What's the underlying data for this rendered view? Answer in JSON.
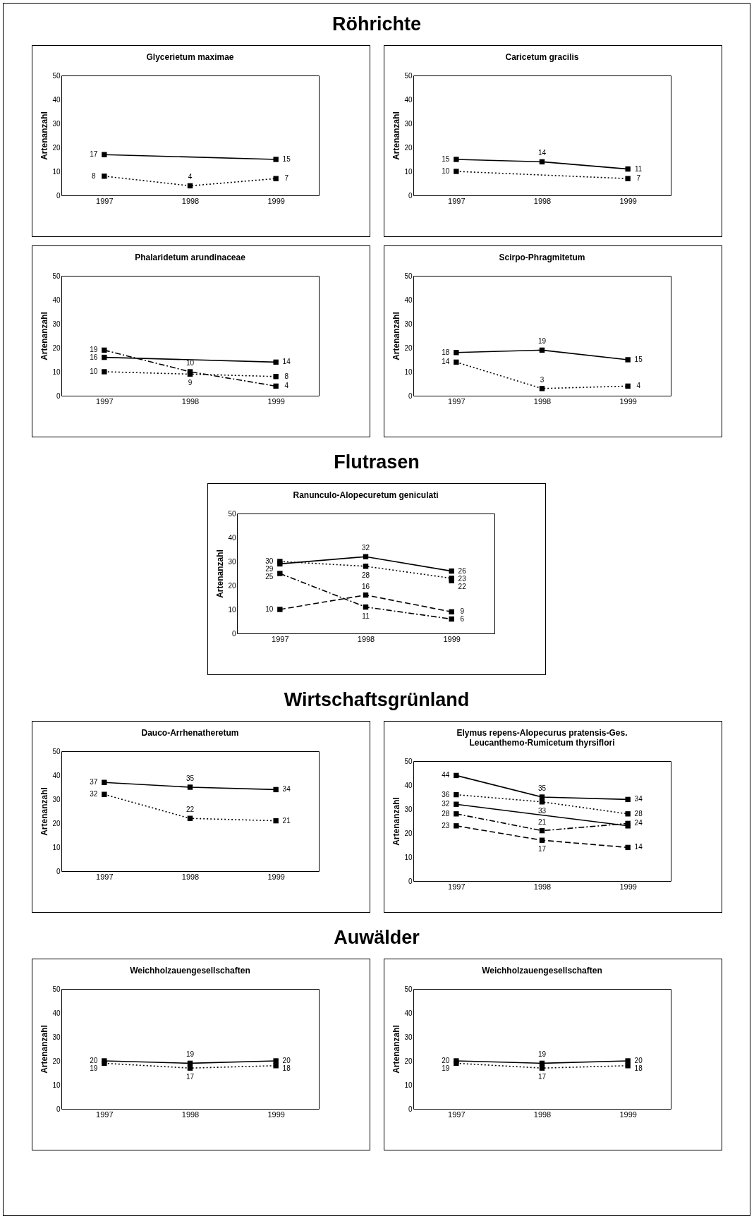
{
  "chart_data": [
    {
      "type": "line",
      "title": "Glycerietum maximae",
      "annotations": [
        "Röhrichte"
      ],
      "ylabel": "Artenanzahl",
      "categories": [
        "1997",
        "1998",
        "1999"
      ],
      "ylim": [
        0,
        50
      ],
      "yticks": [
        0,
        10,
        20,
        30,
        40,
        50
      ],
      "marker": "square",
      "series": [
        {
          "color": "#000000",
          "line_style": "solid",
          "values": [
            17,
            null,
            15
          ],
          "value_labels": [
            "17",
            null,
            "15"
          ]
        },
        {
          "color": "#000000",
          "line_style": "dotted",
          "values": [
            8,
            4,
            7
          ],
          "value_labels": [
            "8",
            "4",
            "7"
          ]
        }
      ]
    },
    {
      "type": "line",
      "title": "Caricetum gracilis",
      "ylabel": "Artenanzahl",
      "categories": [
        "1997",
        "1998",
        "1999"
      ],
      "ylim": [
        0,
        50
      ],
      "yticks": [
        0,
        10,
        20,
        30,
        40,
        50
      ],
      "marker": "square",
      "series": [
        {
          "color": "#000000",
          "line_style": "solid",
          "values": [
            15,
            14,
            11
          ],
          "value_labels": [
            "15",
            "14",
            "11"
          ]
        },
        {
          "color": "#000000",
          "line_style": "dotted",
          "values": [
            10,
            null,
            7
          ],
          "value_labels": [
            "10",
            null,
            "7"
          ]
        }
      ]
    },
    {
      "type": "line",
      "title": "Phalaridetum arundinaceae",
      "ylabel": "Artenanzahl",
      "categories": [
        "1997",
        "1998",
        "1999"
      ],
      "ylim": [
        0,
        50
      ],
      "yticks": [
        0,
        10,
        20,
        30,
        40,
        50
      ],
      "marker": "square",
      "series": [
        {
          "color": "#000000",
          "line_style": "solid",
          "values": [
            16,
            null,
            14
          ],
          "value_labels": [
            "16",
            null,
            "14"
          ]
        },
        {
          "color": "#000000",
          "line_style": "dashdot",
          "values": [
            19,
            10,
            4
          ],
          "value_labels": [
            "19",
            "10",
            "4"
          ]
        },
        {
          "color": "#000000",
          "line_style": "dotted",
          "values": [
            10,
            9,
            8
          ],
          "value_labels": [
            "10",
            "9",
            "8"
          ]
        }
      ]
    },
    {
      "type": "line",
      "title": "Scirpo-Phragmitetum",
      "ylabel": "Artenanzahl",
      "categories": [
        "1997",
        "1998",
        "1999"
      ],
      "ylim": [
        0,
        50
      ],
      "yticks": [
        0,
        10,
        20,
        30,
        40,
        50
      ],
      "marker": "square",
      "series": [
        {
          "color": "#000000",
          "line_style": "solid",
          "values": [
            18,
            19,
            15
          ],
          "value_labels": [
            "18",
            "19",
            "15"
          ]
        },
        {
          "color": "#000000",
          "line_style": "dotted",
          "values": [
            14,
            3,
            4
          ],
          "value_labels": [
            "14",
            "3",
            "4"
          ]
        }
      ]
    },
    {
      "type": "line",
      "title": "Ranunculo-Alopecuretum geniculati",
      "annotations": [
        "Flutrasen"
      ],
      "ylabel": "Artenanzahl",
      "categories": [
        "1997",
        "1998",
        "1999"
      ],
      "ylim": [
        0,
        50
      ],
      "yticks": [
        0,
        10,
        20,
        30,
        40,
        50
      ],
      "marker": "square",
      "series": [
        {
          "color": "#000000",
          "line_style": "solid",
          "values": [
            29,
            32,
            26
          ],
          "value_labels": [
            "29",
            "32",
            "26"
          ]
        },
        {
          "color": "#000000",
          "line_style": "dotted",
          "values": [
            30,
            28,
            23
          ],
          "value_labels": [
            "30",
            "28",
            "23"
          ]
        },
        {
          "color": "#000000",
          "line_style": "dotted",
          "values": [
            null,
            null,
            22
          ],
          "value_labels": [
            null,
            null,
            "22"
          ]
        },
        {
          "color": "#000000",
          "line_style": "dashdot",
          "values": [
            25,
            11,
            6
          ],
          "value_labels": [
            "25",
            "11",
            "6"
          ]
        },
        {
          "color": "#000000",
          "line_style": "dashed",
          "values": [
            10,
            16,
            9
          ],
          "value_labels": [
            "10",
            "16",
            "9"
          ]
        }
      ]
    },
    {
      "type": "line",
      "title": "Dauco-Arrhenatheretum",
      "annotations": [
        "Wirtschaftsgrünland"
      ],
      "ylabel": "Artenanzahl",
      "categories": [
        "1997",
        "1998",
        "1999"
      ],
      "ylim": [
        0,
        50
      ],
      "yticks": [
        0,
        10,
        20,
        30,
        40,
        50
      ],
      "marker": "square",
      "series": [
        {
          "color": "#000000",
          "line_style": "solid",
          "values": [
            37,
            35,
            34
          ],
          "value_labels": [
            "37",
            "35",
            "34"
          ]
        },
        {
          "color": "#000000",
          "line_style": "dotted",
          "values": [
            32,
            22,
            21
          ],
          "value_labels": [
            "32",
            "22",
            "21"
          ]
        }
      ]
    },
    {
      "type": "line",
      "title": "Elymus repens-Alopecurus pratensis-Ges.\nLeucanthemo-Rumicetum thyrsiflori",
      "ylabel": "Artenanzahl",
      "categories": [
        "1997",
        "1998",
        "1999"
      ],
      "ylim": [
        0,
        50
      ],
      "yticks": [
        0,
        10,
        20,
        30,
        40,
        50
      ],
      "marker": "square",
      "series": [
        {
          "color": "#000000",
          "line_style": "solid",
          "values": [
            44,
            35,
            34
          ],
          "value_labels": [
            "44",
            "35",
            "34"
          ]
        },
        {
          "color": "#000000",
          "line_style": "dotted",
          "values": [
            36,
            33,
            28
          ],
          "value_labels": [
            "36",
            "33",
            "28"
          ]
        },
        {
          "color": "#000000",
          "line_style": "solid",
          "values": [
            32,
            null,
            23
          ],
          "value_labels": [
            "32",
            null,
            null
          ]
        },
        {
          "color": "#000000",
          "line_style": "dashdot",
          "values": [
            28,
            21,
            24
          ],
          "value_labels": [
            "28",
            "21",
            "24"
          ]
        },
        {
          "color": "#000000",
          "line_style": "dashed",
          "values": [
            23,
            17,
            14
          ],
          "value_labels": [
            "23",
            "17",
            "14"
          ]
        }
      ]
    },
    {
      "type": "line",
      "title": "Weichholzauengesellschaften",
      "annotations": [
        "Auwälder"
      ],
      "ylabel": "Artenanzahl",
      "categories": [
        "1997",
        "1998",
        "1999"
      ],
      "ylim": [
        0,
        50
      ],
      "yticks": [
        0,
        10,
        20,
        30,
        40,
        50
      ],
      "marker": "square",
      "series": [
        {
          "color": "#000000",
          "line_style": "solid",
          "values": [
            20,
            19,
            20
          ],
          "value_labels": [
            "20",
            "19",
            "20"
          ]
        },
        {
          "color": "#000000",
          "line_style": "dotted",
          "values": [
            19,
            17,
            18
          ],
          "value_labels": [
            "19",
            "17",
            "18"
          ]
        }
      ]
    },
    {
      "type": "line",
      "title": "Weichholzauengesellschaften",
      "ylabel": "Artenanzahl",
      "categories": [
        "1997",
        "1998",
        "1999"
      ],
      "ylim": [
        0,
        50
      ],
      "yticks": [
        0,
        10,
        20,
        30,
        40,
        50
      ],
      "marker": "square",
      "series": [
        {
          "color": "#000000",
          "line_style": "solid",
          "values": [
            20,
            19,
            20
          ],
          "value_labels": [
            "20",
            "19",
            "20"
          ]
        },
        {
          "color": "#000000",
          "line_style": "dotted",
          "values": [
            19,
            17,
            18
          ],
          "value_labels": [
            "19",
            "17",
            "18"
          ]
        }
      ]
    }
  ]
}
